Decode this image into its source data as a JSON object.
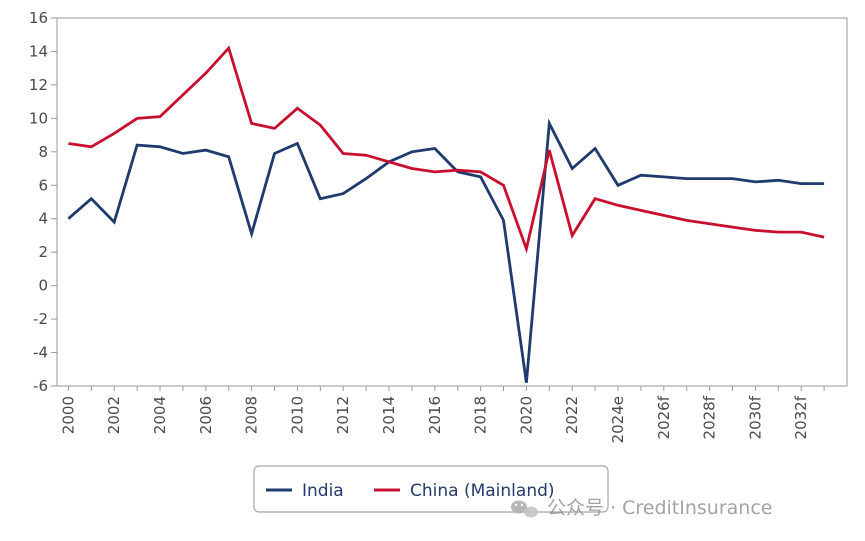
{
  "chart_data": {
    "type": "line",
    "title": "",
    "xlabel": "",
    "ylabel": "",
    "ylim": [
      -6,
      16
    ],
    "yticks": [
      -6,
      -4,
      -2,
      0,
      2,
      4,
      6,
      8,
      10,
      12,
      14,
      16
    ],
    "xticks": [
      "2000",
      "2002",
      "2004",
      "2006",
      "2008",
      "2010",
      "2012",
      "2014",
      "2016",
      "2018",
      "2020",
      "2022",
      "2024e",
      "2026f",
      "2028f",
      "2030f",
      "2032f"
    ],
    "x": [
      2000,
      2001,
      2002,
      2003,
      2004,
      2005,
      2006,
      2007,
      2008,
      2009,
      2010,
      2011,
      2012,
      2013,
      2014,
      2015,
      2016,
      2017,
      2018,
      2019,
      2020,
      2021,
      2022,
      2023,
      2024,
      2025,
      2026,
      2027,
      2028,
      2029,
      2030,
      2031,
      2032,
      2033
    ],
    "grid": false,
    "legend_position": "bottom-center",
    "series": [
      {
        "name": "India",
        "color": "#1f3a6d",
        "values": [
          4.0,
          5.2,
          3.8,
          8.4,
          8.3,
          7.9,
          8.1,
          7.7,
          3.1,
          7.9,
          8.5,
          5.2,
          5.5,
          6.4,
          7.4,
          8.0,
          8.2,
          6.8,
          6.5,
          3.9,
          -5.8,
          9.7,
          7.0,
          8.2,
          6.0,
          6.6,
          6.5,
          6.4,
          6.4,
          6.4,
          6.2,
          6.3,
          6.1,
          6.1
        ]
      },
      {
        "name": "China (Mainland)",
        "color": "#c8102e",
        "values": [
          8.5,
          8.3,
          9.1,
          10.0,
          10.1,
          11.4,
          12.7,
          14.2,
          9.7,
          9.4,
          10.6,
          9.6,
          7.9,
          7.8,
          7.4,
          7.0,
          6.8,
          6.9,
          6.8,
          6.0,
          2.2,
          8.1,
          3.0,
          5.2,
          4.8,
          4.5,
          4.2,
          3.9,
          3.7,
          3.5,
          3.3,
          3.2,
          3.2,
          2.9
        ]
      }
    ]
  },
  "watermark": {
    "icon": "wechat-icon",
    "text": "公众号 · CreditInsurance"
  }
}
